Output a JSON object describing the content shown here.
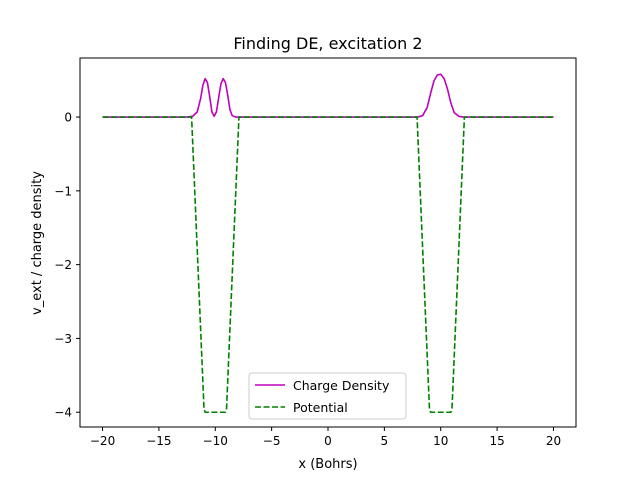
{
  "chart_data": {
    "type": "line",
    "title": "Finding DE, excitation 2",
    "xlabel": "x (Bohrs)",
    "ylabel": "v_ext / charge density",
    "xlim": [
      -22,
      22
    ],
    "ylim": [
      -4.2,
      0.8
    ],
    "xticks": [
      -20,
      -15,
      -10,
      -5,
      0,
      5,
      10,
      15,
      20
    ],
    "yticks": [
      0,
      -1,
      -2,
      -3,
      -4
    ],
    "xtick_labels": [
      "−20",
      "−15",
      "−10",
      "−5",
      "0",
      "5",
      "10",
      "15",
      "20"
    ],
    "ytick_labels": [
      "0",
      "−1",
      "−2",
      "−3",
      "−4"
    ],
    "grid": false,
    "legend_position": "bottom-center",
    "series": [
      {
        "name": "Charge Density",
        "color": "#bf00bf",
        "style": "solid",
        "x": [
          -20,
          -12.5,
          -12,
          -11.6,
          -11.3,
          -11.1,
          -10.9,
          -10.7,
          -10.5,
          -10.3,
          -10.1,
          -9.9,
          -9.7,
          -9.5,
          -9.3,
          -9.1,
          -8.9,
          -8.7,
          -8.5,
          -8.2,
          -7.8,
          8,
          8.4,
          8.8,
          9.1,
          9.4,
          9.7,
          10,
          10.3,
          10.6,
          10.9,
          11.2,
          11.6,
          12,
          20
        ],
        "y": [
          0,
          0,
          0.01,
          0.07,
          0.25,
          0.43,
          0.52,
          0.47,
          0.28,
          0.07,
          0.01,
          0.07,
          0.26,
          0.45,
          0.52,
          0.47,
          0.3,
          0.1,
          0.02,
          0,
          0,
          0,
          0.02,
          0.13,
          0.32,
          0.49,
          0.57,
          0.58,
          0.52,
          0.38,
          0.19,
          0.06,
          0.01,
          0,
          0
        ]
      },
      {
        "name": "Potential",
        "color": "#008000",
        "style": "dashed",
        "x": [
          -20,
          -12.1,
          -11.0,
          -10.9,
          -9.1,
          -9.0,
          -7.9,
          7.9,
          9.0,
          9.1,
          10.9,
          11.0,
          12.1,
          20
        ],
        "y": [
          0,
          0,
          -3.95,
          -4,
          -4,
          -3.95,
          0,
          0,
          -3.95,
          -4,
          -4,
          -3.95,
          0,
          0
        ]
      }
    ]
  }
}
